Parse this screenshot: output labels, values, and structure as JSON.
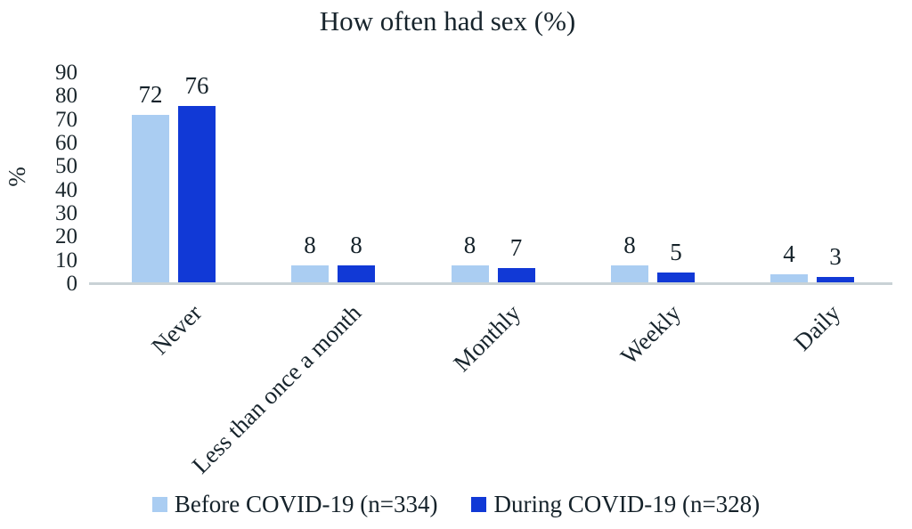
{
  "chart_data": {
    "type": "bar",
    "title": "How often had sex (%)",
    "ylabel": "%",
    "ylim": [
      0,
      90
    ],
    "ytick_step": 10,
    "grid": false,
    "legend_position": "bottom",
    "bar_value_labels": true,
    "categories": [
      "Never",
      "Less than once a month",
      "Monthly",
      "Weekly",
      "Daily"
    ],
    "series": [
      {
        "name": "Before COVID-19 (n=334)",
        "color": "#aacdf2",
        "values": [
          72,
          8,
          8,
          8,
          4
        ]
      },
      {
        "name": "During COVID-19 (n=328)",
        "color": "#1139d6",
        "values": [
          76,
          8,
          7,
          5,
          3
        ]
      }
    ],
    "colors": {
      "axis_line": "#c9d2d6",
      "text": "#17242c"
    }
  }
}
